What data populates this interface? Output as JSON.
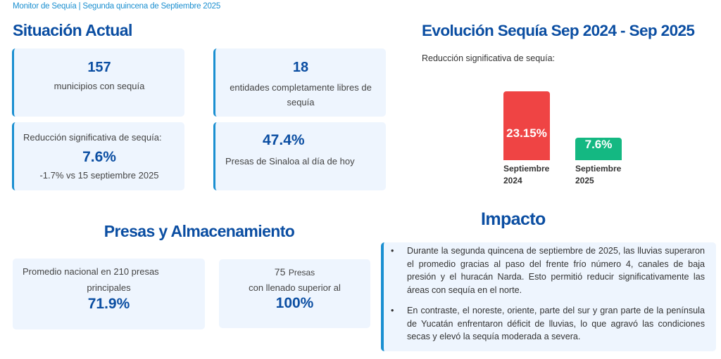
{
  "header": {
    "breadcrumb": "Monitor de Sequía | Segunda quincena de Septiembre 2025"
  },
  "situacion": {
    "title": "Situación Actual",
    "cards": [
      {
        "value": "157",
        "label": "municipios con sequía"
      },
      {
        "value": "18",
        "label": "entidades completamente libres de sequía"
      },
      {
        "heading": "Reducción significativa de sequía:",
        "value": "7.6%",
        "note": "-1.7% vs 15 septiembre 2025"
      },
      {
        "value": "47.4%",
        "label": "Presas de Sinaloa al día de hoy"
      }
    ]
  },
  "evolucion": {
    "title": "Evolución Sequía Sep 2024 - Sep 2025",
    "subtitle": "Reducción significativa de sequía:"
  },
  "chart_data": {
    "type": "bar",
    "title": "Evolución Sequía Sep 2024 - Sep 2025",
    "subtitle": "Reducción significativa de sequía:",
    "categories": [
      "Septiembre 2024",
      "Septiembre 2025"
    ],
    "category_lines": [
      [
        "Septiembre",
        "2024"
      ],
      [
        "Septiembre",
        "2025"
      ]
    ],
    "values": [
      23.15,
      7.6
    ],
    "data_labels": [
      "23.15%",
      "7.6%"
    ],
    "colors": [
      "#ef4444",
      "#14b882"
    ],
    "xlabel": "",
    "ylabel": "",
    "ylim": [
      0,
      23.15
    ],
    "grid": false
  },
  "presas": {
    "title": "Presas y Almacenamiento",
    "card1": {
      "line1": "Promedio nacional en 210 presas",
      "line2": "principales",
      "value": "71.9%"
    },
    "card2": {
      "count": "75",
      "count_unit": "Presas",
      "line2": "con llenado superior al",
      "value": "100%"
    }
  },
  "impacto": {
    "title": "Impacto",
    "bullets": [
      "Durante la segunda quincena de septiembre de 2025, las lluvias superaron el promedio gracias al paso del frente frío número 4, canales de baja presión y el huracán Narda. Esto permitió reducir significativamente las áreas con sequía en el norte.",
      "En contraste, el noreste, oriente, parte del sur y gran parte de la península de Yucatán enfrentaron déficit de lluvias, lo que agravó las condiciones secas y elevó la sequía moderada a severa."
    ],
    "bullet_symbol": "•"
  }
}
